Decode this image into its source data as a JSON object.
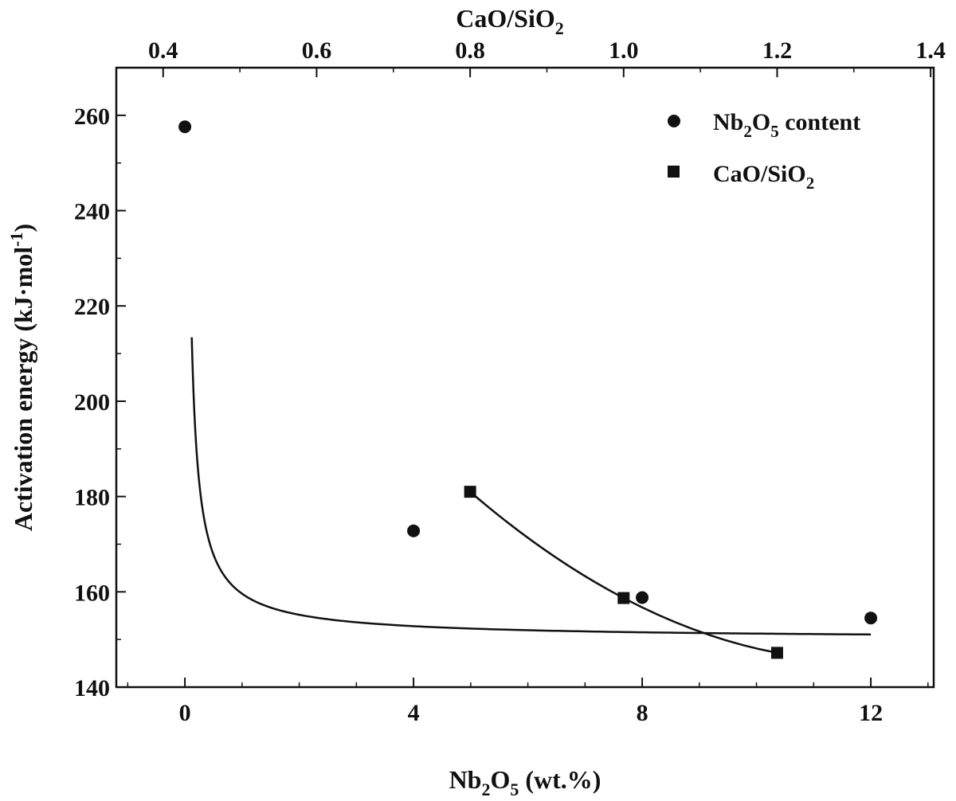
{
  "chart_data": {
    "type": "scatter",
    "title": "",
    "xlabel": {
      "base": "Nb",
      "sub1": "2",
      "mid": "O",
      "sub2": "5",
      "tail": " (wt.%)"
    },
    "x2label": {
      "base": "CaO/SiO",
      "sub": "2"
    },
    "ylabel": {
      "base": "Activation energy (kJ·mol",
      "sup": "-1",
      "tail": ")"
    },
    "xlim": [
      -1.2,
      13.1
    ],
    "x2lim": [
      0.339,
      1.404
    ],
    "ylim": [
      140,
      270
    ],
    "xticks": [
      0,
      4,
      8,
      12
    ],
    "xtick_labels": [
      "0",
      "4",
      "8",
      "12"
    ],
    "x2ticks": [
      0.4,
      0.6,
      0.8,
      1.0,
      1.2,
      1.4
    ],
    "x2tick_labels": [
      "0.4",
      "0.6",
      "0.8",
      "1.0",
      "1.2",
      "1.4"
    ],
    "yticks": [
      140,
      160,
      180,
      200,
      220,
      240,
      260
    ],
    "ytick_labels": [
      "140",
      "160",
      "180",
      "200",
      "220",
      "240",
      "260"
    ],
    "legend_position": "top-right",
    "series": [
      {
        "name": {
          "base": "Nb",
          "sub1": "2",
          "mid": "O",
          "sub2": "5",
          "tail": " content"
        },
        "axis": "bottom",
        "marker": "circle",
        "x": [
          0,
          4,
          8,
          12
        ],
        "y": [
          257.6,
          172.8,
          158.8,
          154.5
        ],
        "fit_curve": {
          "a": 150,
          "b": 9.61,
          "c": 0.89,
          "x_start": 0.12,
          "x_end": 12
        }
      },
      {
        "name": {
          "base": "CaO/SiO",
          "sub": "2"
        },
        "axis": "top",
        "marker": "square",
        "x": [
          0.8,
          1.0,
          1.2
        ],
        "y": [
          181.0,
          158.7,
          147.2
        ],
        "fit_curve": "smooth"
      }
    ]
  }
}
